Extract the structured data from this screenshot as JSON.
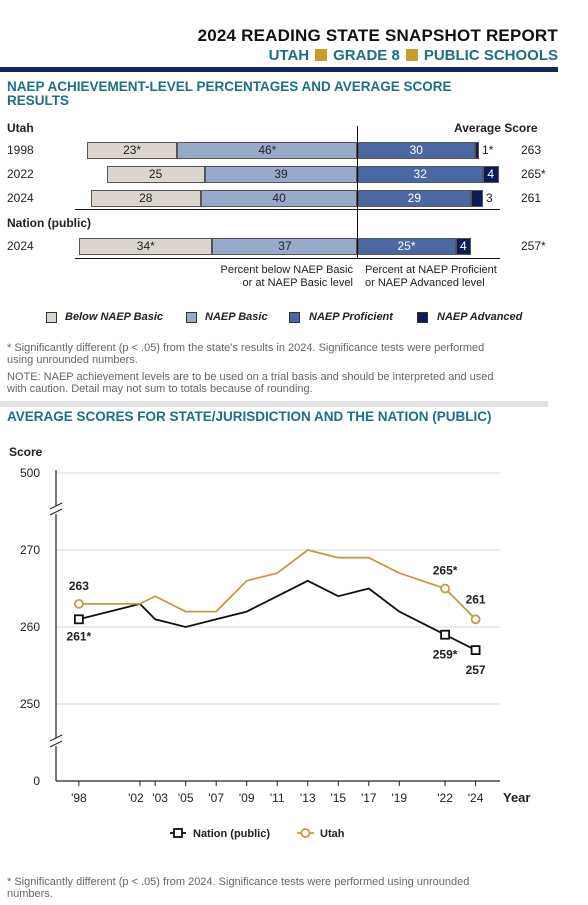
{
  "header": {
    "title": "2024 READING STATE SNAPSHOT REPORT",
    "state": "UTAH",
    "grade": "GRADE 8",
    "schools": "PUBLIC SCHOOLS"
  },
  "section1": {
    "title_line1": "NAEP ACHIEVEMENT-LEVEL PERCENTAGES AND AVERAGE SCORE",
    "title_line2": "RESULTS",
    "utah_label": "Utah",
    "avg_score_label": "Average Score",
    "nation_label": "Nation (public)",
    "caption_left_1": "Percent below NAEP Basic",
    "caption_left_2": "or at NAEP Basic level",
    "caption_right_1": "Percent at NAEP Proficient",
    "caption_right_2": "or NAEP Advanced level",
    "rows": [
      {
        "year": "1998",
        "below": "23*",
        "basic": "46*",
        "proficient": "30",
        "advanced": "1*",
        "score": "263"
      },
      {
        "year": "2022",
        "below": "25",
        "basic": "39",
        "proficient": "32",
        "advanced": "4",
        "score": "265*"
      },
      {
        "year": "2024",
        "below": "28",
        "basic": "40",
        "proficient": "29",
        "advanced": "3",
        "score": "261"
      },
      {
        "year": "2024",
        "below": "34*",
        "basic": "37",
        "proficient": "25*",
        "advanced": "4",
        "score": "257*"
      }
    ],
    "legend": {
      "below": "Below NAEP Basic",
      "basic": "NAEP Basic",
      "proficient": "NAEP Proficient",
      "advanced": "NAEP Advanced"
    },
    "colors": {
      "below": "#dbd5cd",
      "basic": "#99a9cb",
      "proficient": "#4a68a4",
      "advanced": "#0d1b59"
    },
    "note1_line1": "* Significantly different (p < .05) from the state's results in 2024. Significance tests were performed",
    "note1_line2": "using unrounded numbers.",
    "note2_line1": "NOTE:  NAEP achievement levels are to be used on a trial basis and should be interpreted and used",
    "note2_line2": "with caution. Detail may not sum to totals because of rounding."
  },
  "section2": {
    "title": "AVERAGE SCORES FOR STATE/JURISDICTION AND THE NATION (PUBLIC)",
    "footnote_line1": "* Significantly different (p < .05) from 2024. Significance tests were performed using unrounded",
    "footnote_line2": "numbers."
  },
  "chart_data": {
    "type": "line",
    "ylabel": "Score",
    "xlabel": "Year",
    "y_ticks": [
      "500",
      "270",
      "260",
      "250",
      "0"
    ],
    "x_ticks": [
      "'98",
      "'02",
      "'03",
      "'05",
      "'07",
      "'09",
      "'11",
      "'13",
      "'15",
      "'17",
      "'19",
      "'22",
      "'24"
    ],
    "ylim": [
      250,
      270
    ],
    "axis_breaks": true,
    "grid": true,
    "legend_position": "bottom",
    "series": [
      {
        "name": "Nation (public)",
        "color": "#111111",
        "marker": "square",
        "x": [
          1998,
          2002,
          2003,
          2005,
          2007,
          2009,
          2011,
          2013,
          2015,
          2017,
          2019,
          2022,
          2024
        ],
        "y": [
          261,
          263,
          261,
          260,
          261,
          262,
          264,
          266,
          264,
          265,
          262,
          259,
          257
        ],
        "labels": [
          {
            "x": 1998,
            "text": "261*"
          },
          {
            "x": 2022,
            "text": "259*"
          },
          {
            "x": 2024,
            "text": "257"
          }
        ]
      },
      {
        "name": "Utah",
        "color": "#c49a45",
        "marker": "circle",
        "x": [
          1998,
          2002,
          2003,
          2005,
          2007,
          2009,
          2011,
          2013,
          2015,
          2017,
          2019,
          2022,
          2024
        ],
        "y": [
          263,
          263,
          264,
          262,
          262,
          266,
          267,
          270,
          269,
          269,
          267,
          265,
          261
        ],
        "labels": [
          {
            "x": 1998,
            "text": "263"
          },
          {
            "x": 2022,
            "text": "265*"
          },
          {
            "x": 2024,
            "text": "261"
          }
        ]
      }
    ]
  }
}
